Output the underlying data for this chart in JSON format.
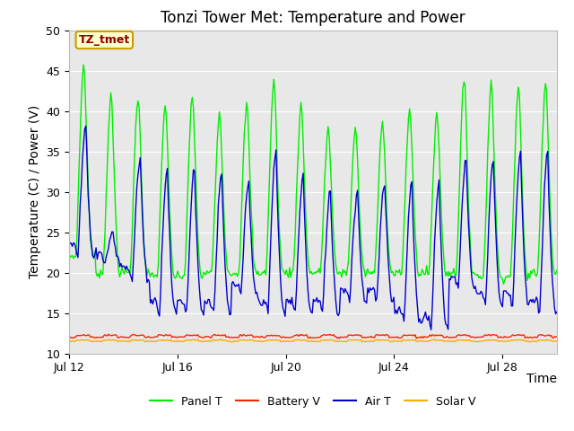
{
  "title": "Tonzi Tower Met: Temperature and Power",
  "xlabel": "Time",
  "ylabel": "Temperature (C) / Power (V)",
  "ylim": [
    10,
    50
  ],
  "xtick_labels": [
    "Jul 12",
    "Jul 16",
    "Jul 20",
    "Jul 24",
    "Jul 28"
  ],
  "annotation_text": "TZ_tmet",
  "panel_color": "#00ee00",
  "battery_color": "#ff2200",
  "air_color": "#0000cc",
  "solar_color": "#ffaa00",
  "bg_color": "#e8e8e8",
  "fig_color": "#ffffff",
  "legend_labels": [
    "Panel T",
    "Battery V",
    "Air T",
    "Solar V"
  ],
  "title_fontsize": 12,
  "axis_label_fontsize": 10,
  "tick_fontsize": 9
}
